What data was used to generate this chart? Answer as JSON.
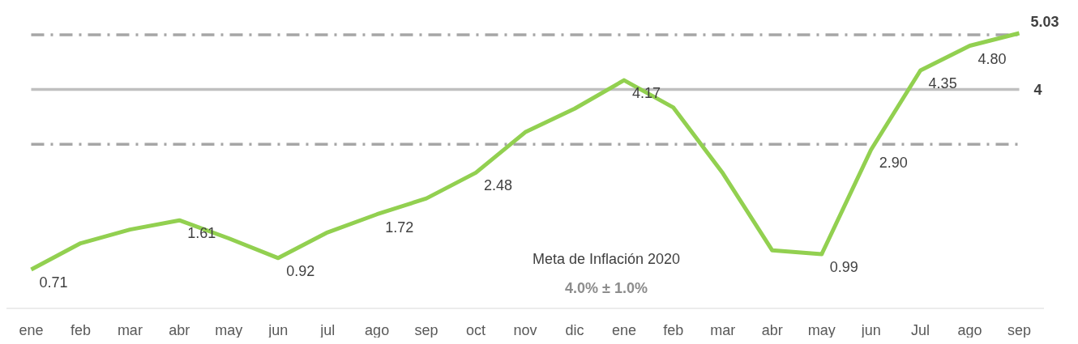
{
  "chart_data": {
    "type": "line",
    "categories": [
      "ene",
      "feb",
      "mar",
      "abr",
      "may",
      "jun",
      "jul",
      "ago",
      "sep",
      "oct",
      "nov",
      "dic",
      "ene",
      "feb",
      "mar",
      "abr",
      "may",
      "jun",
      "Jul",
      "ago",
      "sep"
    ],
    "series": [
      {
        "color": "#92d050",
        "values": [
          0.71,
          1.19,
          1.44,
          1.61,
          1.28,
          0.92,
          1.39,
          1.72,
          2.01,
          2.48,
          3.22,
          3.65,
          4.17,
          3.67,
          2.47,
          1.06,
          0.99,
          2.9,
          4.35,
          4.8,
          5.03
        ],
        "value_labels": [
          "0.71",
          null,
          null,
          "1.61",
          null,
          "0.92",
          null,
          "1.72",
          null,
          "2.48",
          null,
          null,
          "4.17",
          null,
          null,
          null,
          "0.99",
          "2.90",
          "4.35",
          "4.80",
          "5.03"
        ]
      }
    ],
    "marker": "none",
    "line_style": "solid",
    "ref_lines": [
      {
        "axis": "y",
        "value": 4,
        "label": "4",
        "color": "#bfbfbf",
        "line_style": "solid"
      },
      {
        "axis": "y",
        "value": 5,
        "color": "#a6a6a6",
        "line_style": "dashed"
      },
      {
        "axis": "y",
        "value": 3,
        "color": "#a6a6a6",
        "line_style": "dashed"
      }
    ],
    "annotations": [
      "Meta de Inflación 2020",
      "4.0% ± 1.0%"
    ]
  }
}
